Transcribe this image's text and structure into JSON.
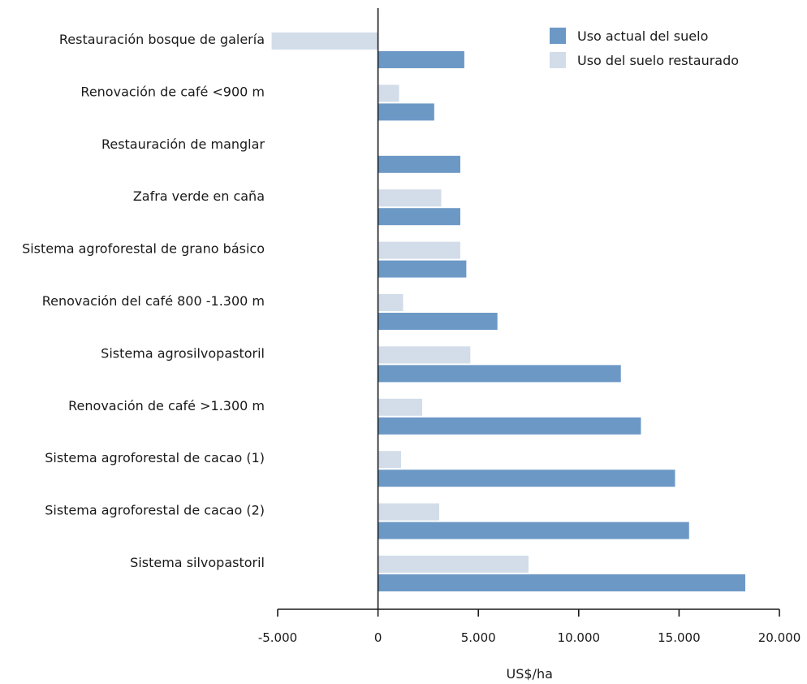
{
  "chart_data": {
    "type": "bar",
    "orientation": "horizontal",
    "categories": [
      "Restauración bosque de galería",
      "Renovación de café <900 m",
      "Restauración de manglar",
      "Zafra verde en caña",
      "Sistema agroforestal de grano básico",
      "Renovación del café 800 -1.300 m",
      "Sistema agrosilvopastoril",
      "Renovación de café >1.300 m",
      "Sistema agroforestal de cacao (1)",
      "Sistema agroforestal de cacao (2)",
      "Sistema silvopastoril"
    ],
    "series": [
      {
        "name": "Uso actual del suelo",
        "color": "#6c98c6",
        "values": [
          4300,
          2800,
          4100,
          4100,
          4400,
          5950,
          12100,
          13100,
          14800,
          15500,
          18300
        ]
      },
      {
        "name": "Uso del suelo restaurado",
        "color": "#d2dde9",
        "values": [
          -5300,
          1050,
          null,
          3150,
          4100,
          1250,
          4600,
          2200,
          1150,
          3050,
          7500
        ]
      }
    ],
    "xlim": [
      -5000,
      20000
    ],
    "xticks": [
      -5000,
      0,
      5000,
      10000,
      15000,
      20000
    ],
    "xtick_labels": [
      "-5.000",
      "0",
      "5.000",
      "10.000",
      "15.000",
      "20.000"
    ],
    "xlabel": "US$/ha",
    "ylabel": "",
    "title": "",
    "legend_position": "top-right",
    "grid": false
  }
}
